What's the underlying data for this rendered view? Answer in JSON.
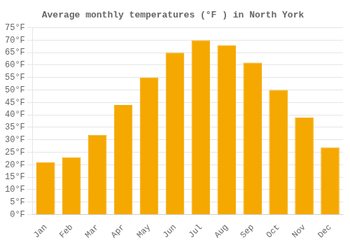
{
  "chart_data": {
    "type": "bar",
    "title": "Average monthly temperatures (°F ) in North York",
    "categories": [
      "Jan",
      "Feb",
      "Mar",
      "Apr",
      "May",
      "Jun",
      "Jul",
      "Aug",
      "Sep",
      "Oct",
      "Nov",
      "Dec"
    ],
    "values": [
      21,
      23,
      32,
      44,
      55,
      65,
      70,
      68,
      61,
      50,
      39,
      27
    ],
    "color": "#F5A800",
    "ylim": [
      0,
      75
    ],
    "yticks": [
      {
        "value": 0,
        "label": "0°F"
      },
      {
        "value": 5,
        "label": "5°F"
      },
      {
        "value": 10,
        "label": "10°F"
      },
      {
        "value": 15,
        "label": "15°F"
      },
      {
        "value": 20,
        "label": "20°F"
      },
      {
        "value": 25,
        "label": "25°F"
      },
      {
        "value": 30,
        "label": "30°F"
      },
      {
        "value": 35,
        "label": "35°F"
      },
      {
        "value": 40,
        "label": "40°F"
      },
      {
        "value": 45,
        "label": "45°F"
      },
      {
        "value": 50,
        "label": "50°F"
      },
      {
        "value": 55,
        "label": "55°F"
      },
      {
        "value": 60,
        "label": "60°F"
      },
      {
        "value": 65,
        "label": "65°F"
      },
      {
        "value": 70,
        "label": "70°F"
      },
      {
        "value": 75,
        "label": "75°F"
      }
    ],
    "grid": true
  }
}
